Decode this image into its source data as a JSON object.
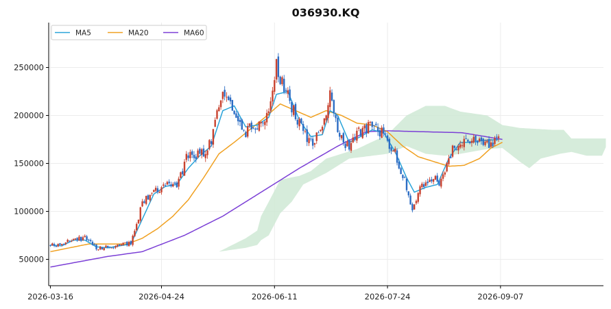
{
  "chart_data": {
    "type": "candlestick",
    "title": "036930.KQ",
    "xlabel": "",
    "ylabel": "",
    "ylim": [
      25000,
      295000
    ],
    "x_range": [
      -1,
      290
    ],
    "grid": true,
    "legend_placement": "top-left",
    "colors": {
      "up": "#c8412e",
      "down": "#2b6cc4",
      "ma5": "#29a3d9",
      "ma20": "#f0a020",
      "ma60": "#7b3fd6",
      "cloud_bull": "#cfe9d5",
      "cloud_bear": "#fcd7d7"
    },
    "x_ticks": [
      {
        "label": "2026-03-16",
        "x": 0
      },
      {
        "label": "2026-04-24",
        "x": 58
      },
      {
        "label": "2026-06-11",
        "x": 117
      },
      {
        "label": "2026-07-24",
        "x": 176
      },
      {
        "label": "2026-09-07",
        "x": 235
      }
    ],
    "y_ticks": [
      50000,
      100000,
      150000,
      200000,
      250000
    ],
    "legend": [
      {
        "key": "ma5",
        "label": "MA5"
      },
      {
        "key": "ma20",
        "label": "MA20"
      },
      {
        "key": "ma60",
        "label": "MA60"
      }
    ],
    "price_anchors": [
      [
        0,
        64000
      ],
      [
        6,
        66000
      ],
      [
        12,
        71000
      ],
      [
        18,
        72000
      ],
      [
        24,
        62000
      ],
      [
        30,
        63000
      ],
      [
        36,
        64000
      ],
      [
        42,
        68000
      ],
      [
        48,
        108000
      ],
      [
        54,
        123000
      ],
      [
        60,
        126000
      ],
      [
        66,
        127000
      ],
      [
        72,
        160000
      ],
      [
        78,
        158000
      ],
      [
        84,
        172000
      ],
      [
        90,
        225000
      ],
      [
        96,
        205000
      ],
      [
        102,
        182000
      ],
      [
        108,
        192000
      ],
      [
        114,
        205000
      ],
      [
        118,
        250000
      ],
      [
        124,
        220000
      ],
      [
        130,
        190000
      ],
      [
        136,
        170000
      ],
      [
        142,
        183000
      ],
      [
        146,
        230000
      ],
      [
        150,
        180000
      ],
      [
        156,
        165000
      ],
      [
        162,
        185000
      ],
      [
        168,
        190000
      ],
      [
        174,
        180000
      ],
      [
        180,
        160000
      ],
      [
        186,
        126000
      ],
      [
        189,
        103000
      ],
      [
        193,
        122000
      ],
      [
        198,
        135000
      ],
      [
        204,
        130000
      ],
      [
        210,
        165000
      ],
      [
        216,
        175000
      ],
      [
        222,
        172000
      ],
      [
        228,
        170000
      ],
      [
        234,
        174000
      ]
    ],
    "ma5_anchors": [
      [
        0,
        65000
      ],
      [
        6,
        64000
      ],
      [
        12,
        70000
      ],
      [
        18,
        70000
      ],
      [
        24,
        63000
      ],
      [
        30,
        62000
      ],
      [
        36,
        64000
      ],
      [
        42,
        66000
      ],
      [
        48,
        92000
      ],
      [
        54,
        118000
      ],
      [
        60,
        126000
      ],
      [
        66,
        128000
      ],
      [
        72,
        145000
      ],
      [
        78,
        158000
      ],
      [
        84,
        168000
      ],
      [
        90,
        205000
      ],
      [
        96,
        210000
      ],
      [
        102,
        188000
      ],
      [
        108,
        190000
      ],
      [
        114,
        198000
      ],
      [
        118,
        222000
      ],
      [
        124,
        225000
      ],
      [
        130,
        195000
      ],
      [
        136,
        178000
      ],
      [
        142,
        180000
      ],
      [
        146,
        205000
      ],
      [
        150,
        200000
      ],
      [
        156,
        172000
      ],
      [
        162,
        178000
      ],
      [
        168,
        185000
      ],
      [
        174,
        182000
      ],
      [
        180,
        162000
      ],
      [
        186,
        135000
      ],
      [
        190,
        120000
      ],
      [
        196,
        125000
      ],
      [
        202,
        128000
      ],
      [
        208,
        155000
      ],
      [
        214,
        172000
      ],
      [
        220,
        172000
      ],
      [
        226,
        174000
      ],
      [
        234,
        175000
      ]
    ],
    "ma20_anchors": [
      [
        0,
        58000
      ],
      [
        10,
        62000
      ],
      [
        20,
        66000
      ],
      [
        30,
        66000
      ],
      [
        40,
        66000
      ],
      [
        48,
        72000
      ],
      [
        56,
        82000
      ],
      [
        64,
        95000
      ],
      [
        72,
        112000
      ],
      [
        80,
        135000
      ],
      [
        88,
        160000
      ],
      [
        96,
        172000
      ],
      [
        104,
        185000
      ],
      [
        112,
        198000
      ],
      [
        120,
        212000
      ],
      [
        128,
        205000
      ],
      [
        136,
        198000
      ],
      [
        144,
        205000
      ],
      [
        152,
        200000
      ],
      [
        160,
        192000
      ],
      [
        168,
        190000
      ],
      [
        176,
        183000
      ],
      [
        184,
        168000
      ],
      [
        192,
        157000
      ],
      [
        200,
        152000
      ],
      [
        208,
        147000
      ],
      [
        216,
        148000
      ],
      [
        224,
        155000
      ],
      [
        230,
        166000
      ],
      [
        236,
        172000
      ]
    ],
    "ma60_anchors": [
      [
        0,
        42000
      ],
      [
        30,
        53000
      ],
      [
        48,
        58000
      ],
      [
        70,
        75000
      ],
      [
        90,
        95000
      ],
      [
        110,
        120000
      ],
      [
        130,
        145000
      ],
      [
        150,
        168000
      ],
      [
        165,
        183000
      ],
      [
        176,
        184000
      ],
      [
        195,
        183000
      ],
      [
        215,
        182000
      ],
      [
        236,
        175000
      ]
    ],
    "span_a_anchors": [
      [
        0,
        35000
      ],
      [
        16,
        40000
      ],
      [
        22,
        44000
      ],
      [
        40,
        48000
      ],
      [
        56,
        50000
      ],
      [
        64,
        55000
      ],
      [
        73,
        58000
      ],
      [
        88,
        58000
      ],
      [
        102,
        72000
      ],
      [
        108,
        80000
      ],
      [
        110,
        95000
      ],
      [
        114,
        110000
      ],
      [
        120,
        133000
      ],
      [
        130,
        137000
      ],
      [
        136,
        142000
      ],
      [
        144,
        155000
      ],
      [
        160,
        165000
      ],
      [
        176,
        180000
      ],
      [
        186,
        200000
      ],
      [
        196,
        210000
      ],
      [
        206,
        210000
      ],
      [
        214,
        204000
      ],
      [
        228,
        200000
      ],
      [
        236,
        190000
      ],
      [
        245,
        187000
      ],
      [
        262,
        185000
      ],
      [
        268,
        185000
      ],
      [
        272,
        176000
      ],
      [
        290,
        176000
      ]
    ],
    "span_b_anchors": [
      [
        0,
        35000
      ],
      [
        16,
        40000
      ],
      [
        22,
        44000
      ],
      [
        40,
        48000
      ],
      [
        56,
        50000
      ],
      [
        64,
        55000
      ],
      [
        73,
        58000
      ],
      [
        88,
        58000
      ],
      [
        102,
        62000
      ],
      [
        108,
        65000
      ],
      [
        110,
        70000
      ],
      [
        114,
        75000
      ],
      [
        120,
        98000
      ],
      [
        126,
        110000
      ],
      [
        132,
        128000
      ],
      [
        144,
        140000
      ],
      [
        156,
        155000
      ],
      [
        176,
        160000
      ],
      [
        186,
        168000
      ],
      [
        196,
        160000
      ],
      [
        206,
        158000
      ],
      [
        214,
        160000
      ],
      [
        228,
        165000
      ],
      [
        236,
        166000
      ],
      [
        245,
        152000
      ],
      [
        250,
        145000
      ],
      [
        256,
        155000
      ],
      [
        266,
        160000
      ],
      [
        272,
        162000
      ],
      [
        280,
        158000
      ],
      [
        288,
        158000
      ],
      [
        290,
        167000
      ]
    ]
  }
}
